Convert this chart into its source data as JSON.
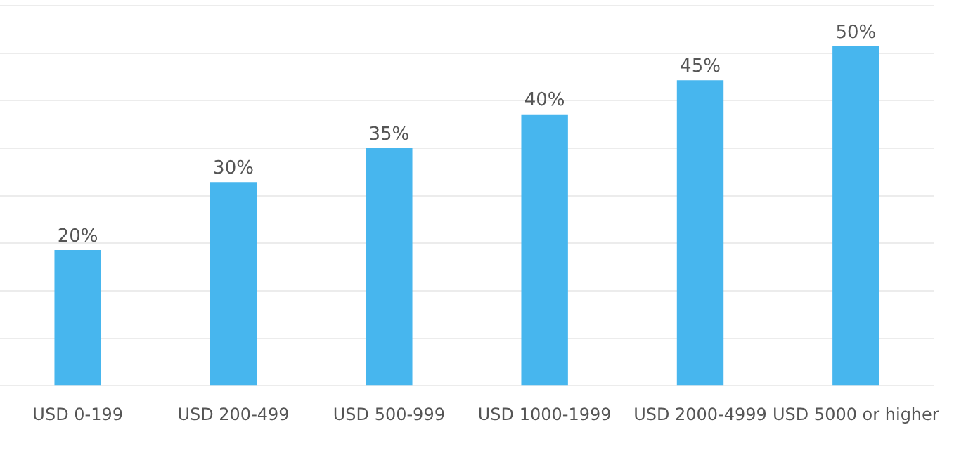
{
  "chart_data": {
    "type": "bar",
    "categories": [
      "USD 0-199",
      "USD 200-499",
      "USD 500-999",
      "USD 1000-1999",
      "USD 2000-4999",
      "USD 5000 or higher"
    ],
    "values": [
      20,
      30,
      35,
      40,
      45,
      50
    ],
    "color": "#47b6ee",
    "data_labels": true,
    "value_labels": [
      "20%",
      "30%",
      "35%",
      "40%",
      "45%",
      "50%"
    ],
    "ylim": [
      0,
      56
    ],
    "yticks": [
      {
        "value": 0,
        "label": null
      },
      {
        "value": 7,
        "label": null
      },
      {
        "value": 14,
        "label": null
      },
      {
        "value": 21,
        "label": null
      },
      {
        "value": 28,
        "label": null
      },
      {
        "value": 35,
        "label": null
      },
      {
        "value": 42,
        "label": null
      },
      {
        "value": 49,
        "label": null
      },
      {
        "value": 56,
        "label": null
      }
    ],
    "grid": "y",
    "tick_labels": "x",
    "legend": false
  }
}
